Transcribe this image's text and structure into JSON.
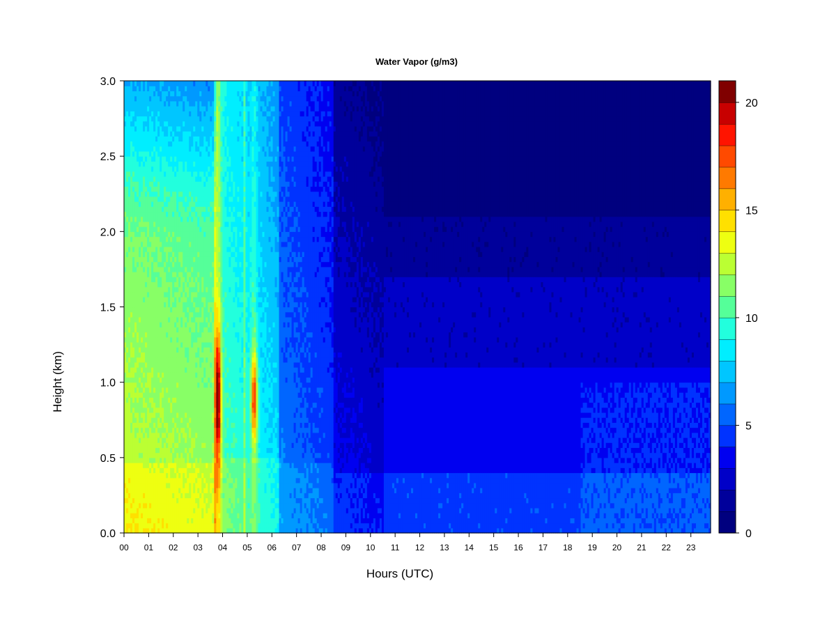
{
  "chart_data": {
    "type": "heatmap",
    "title": "Water Vapor (g/m3)",
    "xlabel": "Hours (UTC)",
    "ylabel": "Height (km)",
    "x_ticks": [
      "00",
      "01",
      "02",
      "03",
      "04",
      "05",
      "06",
      "07",
      "08",
      "09",
      "10",
      "11",
      "12",
      "13",
      "14",
      "15",
      "16",
      "17",
      "18",
      "19",
      "20",
      "21",
      "22",
      "23"
    ],
    "y_ticks": [
      "0.0",
      "0.5",
      "1.0",
      "1.5",
      "2.0",
      "2.5",
      "3.0"
    ],
    "xlim": [
      0,
      23.8
    ],
    "ylim": [
      0,
      3.0
    ],
    "colorbar": {
      "range": [
        0,
        21
      ],
      "levels": 21,
      "ticks": [
        "0",
        "5",
        "10",
        "15",
        "20"
      ],
      "tick_values": [
        0,
        5,
        10,
        15,
        20
      ],
      "colors": [
        "#00007F",
        "#00009B",
        "#0000C8",
        "#0000F0",
        "#0033FF",
        "#0066FF",
        "#0099FF",
        "#00C6FF",
        "#00EEFF",
        "#22FFDD",
        "#55FF99",
        "#88FF66",
        "#BBFF33",
        "#EEFF11",
        "#FFE000",
        "#FFB000",
        "#FF7A00",
        "#FF4A00",
        "#FF1400",
        "#C80000",
        "#800000"
      ]
    },
    "description_of_field_values_g_m3": {
      "hours_00_03_surface_to_0.4km": 14,
      "hours_00_03_0.4_to_2km": 12,
      "hours_00_03_above_2km": 8,
      "plume_03.8h_peak_near_0.9km": 20,
      "plume_05.3h_peak_near_0.9km": 19,
      "hours_06_08": 5,
      "hours_09_24_below_0.5km": 4,
      "hours_09_24_1.2_to_2km": 2,
      "hours_11_24_above_2km": 0
    }
  }
}
